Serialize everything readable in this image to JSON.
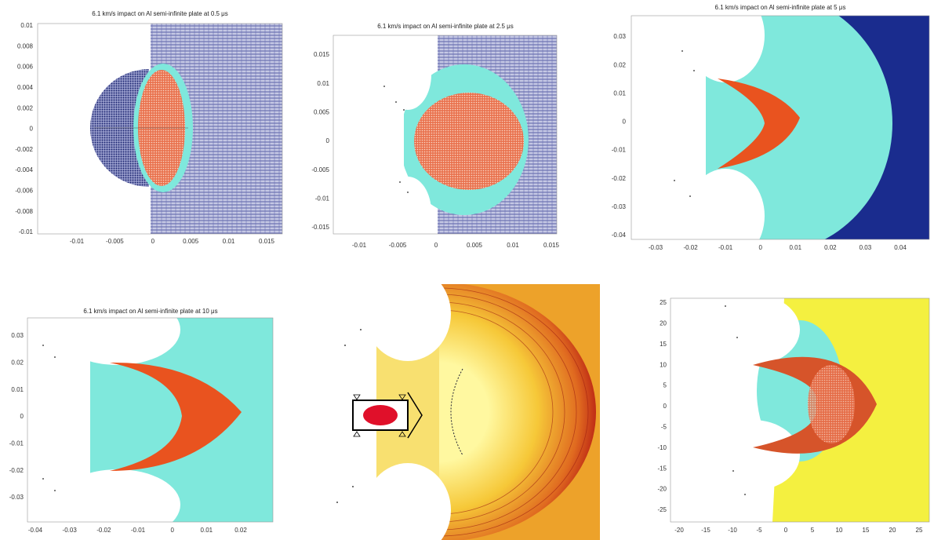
{
  "top_left": {
    "title": "6.1 km/s impact on Al semi-infinite plate at 0.5 μs",
    "yticks": [
      "0.01",
      "0.008",
      "0.006",
      "0.004",
      "0.002",
      "0",
      "-0.002",
      "-0.004",
      "-0.006",
      "-0.008",
      "-0.01"
    ],
    "xticks": [
      "-0.01",
      "-0.005",
      "0",
      "0.005",
      "0.01",
      "0.015"
    ]
  },
  "top_middle": {
    "title": "6.1 km/s impact on Al semi-infinite plate at 2.5 μs",
    "yticks": [
      "0.015",
      "0.01",
      "0.005",
      "0",
      "-0.005",
      "-0.01",
      "-0.015"
    ],
    "xticks": [
      "-0.01",
      "-0.005",
      "0",
      "0.005",
      "0.01",
      "0.015"
    ]
  },
  "top_right": {
    "title": "6.1 km/s impact on Al semi-infinite plate at 5 μs",
    "yticks": [
      "0.03",
      "0.02",
      "0.01",
      "0",
      "-0.01",
      "-0.02",
      "-0.03",
      "-0.04"
    ],
    "xticks": [
      "-0.03",
      "-0.02",
      "-0.01",
      "0",
      "0.01",
      "0.02",
      "0.03",
      "0.04"
    ]
  },
  "bottom_left": {
    "title": "6.1 km/s impact on Al semi-infinite plate at 10 μs",
    "yticks": [
      "0.03",
      "0.02",
      "0.01",
      "0",
      "-0.01",
      "-0.02",
      "-0.03"
    ],
    "xticks": [
      "-0.04",
      "-0.03",
      "-0.02",
      "-0.01",
      "0",
      "0.01",
      "0.02"
    ]
  },
  "bottom_right": {
    "yticks": [
      "25",
      "20",
      "15",
      "10",
      "5",
      "0",
      "-5",
      "-10",
      "-15",
      "-20",
      "-25"
    ],
    "xticks": [
      "-20",
      "-15",
      "-10",
      "-5",
      "0",
      "5",
      "10",
      "15",
      "20",
      "25"
    ]
  }
}
